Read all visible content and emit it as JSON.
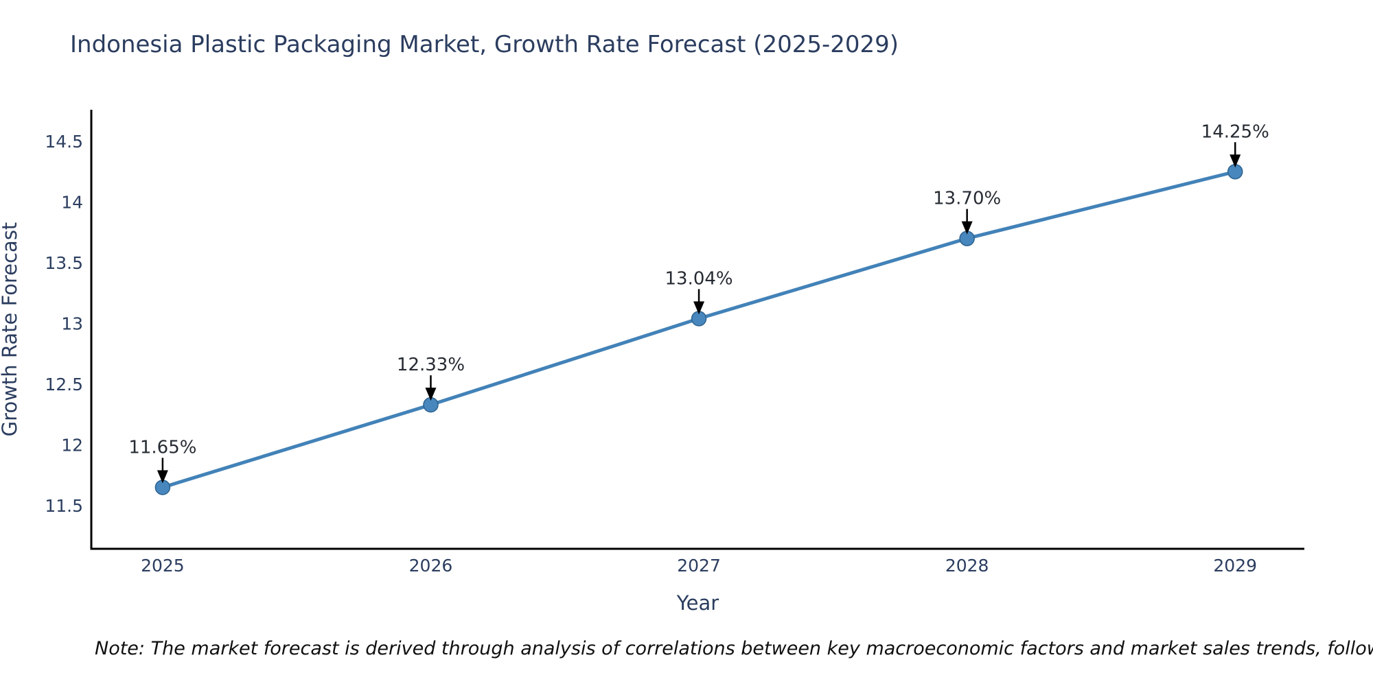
{
  "page": {
    "background_color": "#ffffff"
  },
  "chart_data": {
    "type": "line",
    "title": "Indonesia Plastic Packaging Market, Growth Rate Forecast (2025-2029)",
    "xlabel": "Year",
    "ylabel": "Growth Rate Forecast",
    "x": [
      2025,
      2026,
      2027,
      2028,
      2029
    ],
    "series": [
      {
        "name": "Growth Rate Forecast",
        "values": [
          11.65,
          12.33,
          13.04,
          13.7,
          14.25
        ]
      }
    ],
    "point_labels": [
      "11.65%",
      "12.33%",
      "13.04%",
      "13.70%",
      "14.25%"
    ],
    "xticks": {
      "values": [
        2025,
        2026,
        2027,
        2028,
        2029
      ],
      "labels": [
        "2025",
        "2026",
        "2027",
        "2028",
        "2029"
      ]
    },
    "yticks": {
      "values": [
        11.5,
        12,
        12.5,
        13,
        13.5,
        14,
        14.5
      ],
      "labels": [
        "11.5",
        "12",
        "12.5",
        "13",
        "13.5",
        "14",
        "14.5"
      ]
    },
    "xlim": [
      2024.734,
      2029.258
    ],
    "ylim": [
      11.144,
      14.76
    ],
    "grid": false,
    "legend": false,
    "annotation_style": "value label above each point with black downward arrow",
    "colors": {
      "line": "#4282b8",
      "marker_fill": "#4787bd",
      "marker_edge": "#2d628f",
      "spine": "#000000",
      "axis_text": "#2b3d5f",
      "annotation_text": "#262b33",
      "arrow": "#000000",
      "note_text": "#101010",
      "background": "#ffffff"
    }
  },
  "note": "Note: The market forecast is derived through analysis of correlations between key macroeconomic factors and market sales trends, followed by predictive modeling to project future sal"
}
